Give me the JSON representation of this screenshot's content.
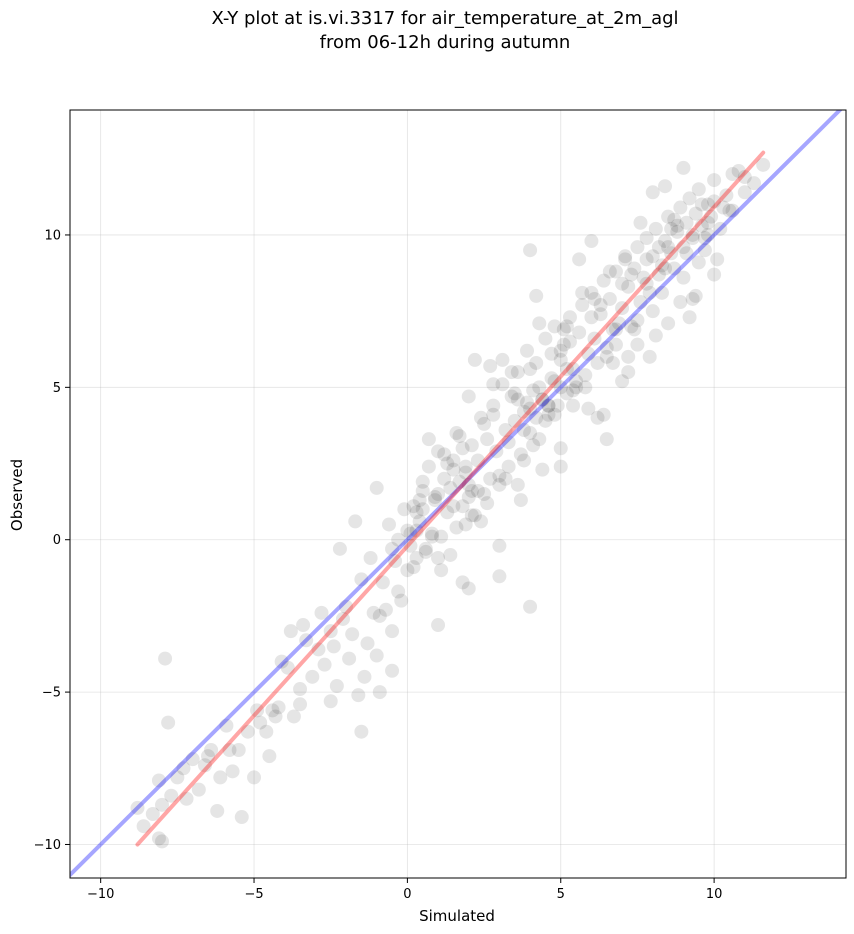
{
  "chart_data": {
    "type": "scatter",
    "title": "X-Y plot at is.vi.3317 for air_temperature_at_2m_agl",
    "subtitle": "from 06-12h during autumn",
    "xlabel": "Simulated",
    "ylabel": "Observed",
    "xlim": [
      -11.0,
      14.3
    ],
    "ylim": [
      -11.1,
      14.1
    ],
    "xticks": [
      -10,
      -5,
      0,
      5,
      10
    ],
    "yticks": [
      -10,
      -5,
      0,
      5,
      10
    ],
    "xtick_labels": [
      "−10",
      "−5",
      "0",
      "5",
      "10"
    ],
    "ytick_labels": [
      "−10",
      "−5",
      "0",
      "5",
      "10"
    ],
    "grid": true,
    "point_color": "#000000",
    "point_alpha": 0.1,
    "reference_lines": [
      {
        "role": "one-to-one",
        "color": "#0000ff",
        "x": [
          -11.0,
          14.3
        ],
        "y": [
          -11.0,
          14.3
        ]
      },
      {
        "role": "regression",
        "color": "#ff0000",
        "x": [
          -8.8,
          11.6
        ],
        "y": [
          -10.0,
          12.7
        ]
      }
    ],
    "points": {
      "x": [
        -8.8,
        -8.6,
        -8.3,
        -8.1,
        -8.0,
        -7.9,
        -7.8,
        -7.7,
        -7.5,
        -7.3,
        -7.0,
        -6.8,
        -6.6,
        -6.4,
        -6.1,
        -5.9,
        -5.7,
        -5.5,
        -5.2,
        -5.0,
        -4.8,
        -4.6,
        -4.4,
        -4.3,
        -4.1,
        -3.9,
        -3.7,
        -3.5,
        -3.3,
        -3.1,
        -2.9,
        -2.7,
        -2.5,
        -2.3,
        -2.1,
        -1.9,
        -1.8,
        -1.6,
        -1.4,
        -1.3,
        -1.1,
        -1.0,
        -0.9,
        -0.7,
        -0.5,
        -0.3,
        -0.2,
        -8.0,
        -8.1,
        -7.2,
        -6.5,
        -6.2,
        -5.8,
        -5.4,
        -4.9,
        -4.5,
        -4.2,
        -3.8,
        -3.4,
        -2.8,
        -2.4,
        -2.0,
        -1.5,
        -1.2,
        -0.8,
        -0.4,
        0.0,
        0.1,
        0.2,
        0.3,
        0.4,
        0.5,
        0.6,
        0.7,
        0.8,
        0.9,
        1.0,
        1.1,
        1.2,
        1.3,
        1.4,
        1.5,
        1.6,
        1.7,
        1.8,
        1.9,
        2.0,
        2.1,
        2.2,
        2.3,
        2.4,
        2.5,
        2.6,
        2.7,
        2.8,
        2.9,
        3.0,
        3.1,
        3.2,
        3.3,
        3.4,
        3.5,
        3.6,
        3.7,
        3.8,
        3.9,
        4.0,
        4.1,
        4.2,
        4.3,
        4.4,
        4.5,
        4.6,
        4.7,
        4.8,
        4.9,
        5.0,
        5.1,
        5.2,
        5.3,
        5.4,
        5.5,
        5.6,
        5.7,
        5.8,
        5.9,
        6.0,
        6.1,
        6.2,
        6.3,
        6.4,
        6.5,
        6.6,
        6.7,
        6.8,
        6.9,
        7.0,
        7.1,
        7.2,
        7.3,
        7.4,
        7.5,
        7.6,
        7.7,
        7.8,
        7.9,
        8.0,
        8.1,
        8.2,
        8.3,
        8.4,
        8.5,
        8.6,
        8.7,
        8.8,
        8.9,
        9.0,
        9.1,
        9.2,
        9.3,
        9.4,
        9.5,
        9.6,
        9.7,
        9.8,
        9.9,
        10.0,
        10.2,
        10.4,
        10.6,
        10.8,
        11.0,
        11.3,
        11.6,
        0.5,
        1.0,
        1.5,
        2.0,
        2.5,
        3.0,
        3.5,
        4.0,
        4.5,
        5.0,
        5.5,
        6.0,
        6.5,
        7.0,
        7.5,
        8.0,
        8.5,
        9.0,
        9.5,
        10.0,
        0.3,
        0.8,
        1.3,
        1.8,
        2.3,
        2.8,
        3.3,
        3.8,
        4.3,
        4.8,
        5.3,
        5.8,
        6.3,
        6.8,
        7.3,
        7.8,
        8.3,
        8.8,
        9.3,
        9.8,
        -0.5,
        -0.1,
        0.6,
        1.2,
        1.9,
        2.6,
        3.4,
        4.1,
        4.7,
        5.4,
        6.1,
        6.7,
        7.4,
        8.2,
        8.9,
        9.6,
        10.3,
        -1.0,
        -0.6,
        0.2,
        0.9,
        1.6,
        2.4,
        3.1,
        3.9,
        4.4,
        5.2,
        5.9,
        6.6,
        7.2,
        8.1,
        8.7,
        9.4,
        10.1,
        10.6,
        0.0,
        0.7,
        1.4,
        2.1,
        2.8,
        3.6,
        4.3,
        5.0,
        5.7,
        6.4,
        7.1,
        7.9,
        8.6,
        9.3,
        -2.2,
        -1.7,
        -0.9,
        1.0,
        2.0,
        3.0,
        4.0,
        5.0,
        6.0,
        7.0,
        8.0,
        9.0,
        10.0,
        1.8,
        2.7,
        3.7,
        4.6,
        5.6,
        6.5,
        7.5,
        8.4,
        9.2,
        0.4,
        1.1,
        2.2,
        3.2,
        4.2,
        5.1,
        6.2,
        7.6,
        8.5,
        9.7,
        4.4,
        4.6,
        4.8,
        5.0,
        4.2,
        4.0,
        3.8,
        3.6,
        5.2,
        5.4,
        1.5,
        1.7,
        1.9,
        2.1,
        0.1,
        0.3,
        0.5,
        -0.3,
        6.8,
        7.2,
        7.8,
        8.4,
        9.1,
        9.8,
        10.5,
        11.0,
        4.0,
        3.0,
        2.0,
        1.0,
        -0.5,
        -1.5,
        -2.5,
        -3.5
      ],
      "y": [
        -8.8,
        -9.4,
        -9.0,
        -9.8,
        -8.7,
        -3.9,
        -6.0,
        -8.4,
        -7.8,
        -7.5,
        -7.2,
        -8.2,
        -7.4,
        -6.9,
        -7.8,
        -6.1,
        -7.6,
        -6.9,
        -6.3,
        -7.8,
        -6.0,
        -6.3,
        -5.6,
        -5.8,
        -4.0,
        -4.2,
        -5.8,
        -4.9,
        -3.3,
        -4.5,
        -3.6,
        -4.1,
        -3.0,
        -4.8,
        -2.6,
        -3.9,
        -3.1,
        -5.1,
        -4.5,
        -3.4,
        -2.4,
        -3.8,
        -5.0,
        -2.3,
        -3.0,
        -1.7,
        -2.0,
        -9.9,
        -7.9,
        -8.5,
        -7.1,
        -8.9,
        -6.9,
        -9.1,
        -5.6,
        -7.1,
        -5.5,
        -3.0,
        -2.8,
        -2.4,
        -3.5,
        -2.2,
        -1.3,
        -0.6,
        -1.4,
        -0.7,
        0.3,
        -0.2,
        1.1,
        -0.6,
        0.6,
        1.9,
        -0.3,
        2.4,
        0.2,
        1.3,
        1.5,
        0.1,
        2.8,
        0.9,
        1.7,
        2.6,
        0.4,
        3.4,
        1.1,
        2.2,
        1.8,
        3.1,
        0.8,
        2.6,
        4.0,
        1.5,
        3.3,
        2.0,
        4.4,
        2.9,
        1.8,
        5.1,
        3.6,
        2.4,
        4.7,
        3.9,
        5.5,
        2.8,
        4.2,
        6.2,
        3.5,
        4.9,
        5.8,
        3.3,
        4.6,
        6.6,
        4.1,
        5.3,
        7.0,
        4.4,
        5.9,
        6.4,
        4.8,
        7.3,
        5.6,
        5.0,
        6.8,
        7.7,
        5.4,
        6.1,
        8.1,
        6.6,
        5.8,
        7.4,
        8.5,
        6.3,
        7.9,
        6.9,
        8.8,
        7.1,
        7.6,
        9.2,
        8.3,
        7.0,
        8.9,
        9.6,
        7.8,
        8.6,
        9.9,
        8.1,
        9.3,
        10.2,
        8.7,
        9.0,
        9.8,
        10.6,
        9.4,
        8.9,
        10.1,
        10.9,
        9.6,
        10.4,
        11.2,
        10.0,
        10.7,
        11.5,
        10.3,
        9.9,
        11.0,
        10.6,
        11.8,
        10.2,
        11.3,
        10.8,
        12.1,
        11.4,
        11.7,
        12.3,
        1.6,
        2.9,
        2.3,
        1.4,
        3.8,
        2.1,
        4.8,
        5.6,
        3.9,
        6.2,
        5.2,
        7.3,
        6.0,
        8.4,
        7.2,
        7.5,
        9.6,
        8.6,
        9.1,
        11.1,
        0.9,
        0.1,
        2.5,
        3.0,
        1.6,
        4.1,
        3.2,
        2.6,
        5.0,
        4.1,
        6.5,
        5.0,
        7.7,
        6.4,
        8.7,
        9.2,
        8.1,
        10.3,
        9.9,
        10.4,
        -0.3,
        1.0,
        -0.4,
        2.0,
        0.5,
        1.2,
        5.5,
        3.1,
        6.1,
        4.4,
        7.9,
        5.8,
        6.9,
        9.6,
        7.8,
        11.0,
        10.9,
        1.7,
        0.5,
        -0.9,
        1.4,
        3.5,
        0.6,
        5.9,
        4.5,
        2.3,
        7.0,
        4.3,
        8.8,
        5.5,
        6.7,
        10.5,
        8.0,
        9.2,
        12.0,
        -1.0,
        3.3,
        -0.5,
        0.8,
        5.1,
        1.8,
        7.1,
        3.0,
        8.1,
        4.1,
        9.3,
        6.0,
        10.2,
        7.9,
        -0.3,
        0.6,
        -2.5,
        -0.6,
        4.7,
        -0.2,
        9.5,
        2.4,
        9.8,
        5.2,
        11.4,
        12.2,
        8.7,
        -1.4,
        5.7,
        1.3,
        4.4,
        9.2,
        3.3,
        6.4,
        11.6,
        7.3,
        1.3,
        -1.0,
        5.9,
        2.0,
        8.0,
        6.9,
        4.0,
        10.4,
        7.1,
        9.5,
        4.6,
        4.4,
        5.2,
        5.0,
        4.0,
        4.3,
        3.6,
        4.6,
        5.6,
        4.9,
        1.1,
        1.9,
        2.4,
        1.6,
        0.2,
        0.3,
        1.0,
        0.0,
        6.9,
        6.0,
        8.4,
        8.9,
        9.4,
        10.0,
        10.8,
        11.9,
        -2.2,
        -1.2,
        -1.6,
        -2.8,
        -4.3,
        -6.3,
        -5.3,
        -5.4
      ]
    }
  }
}
